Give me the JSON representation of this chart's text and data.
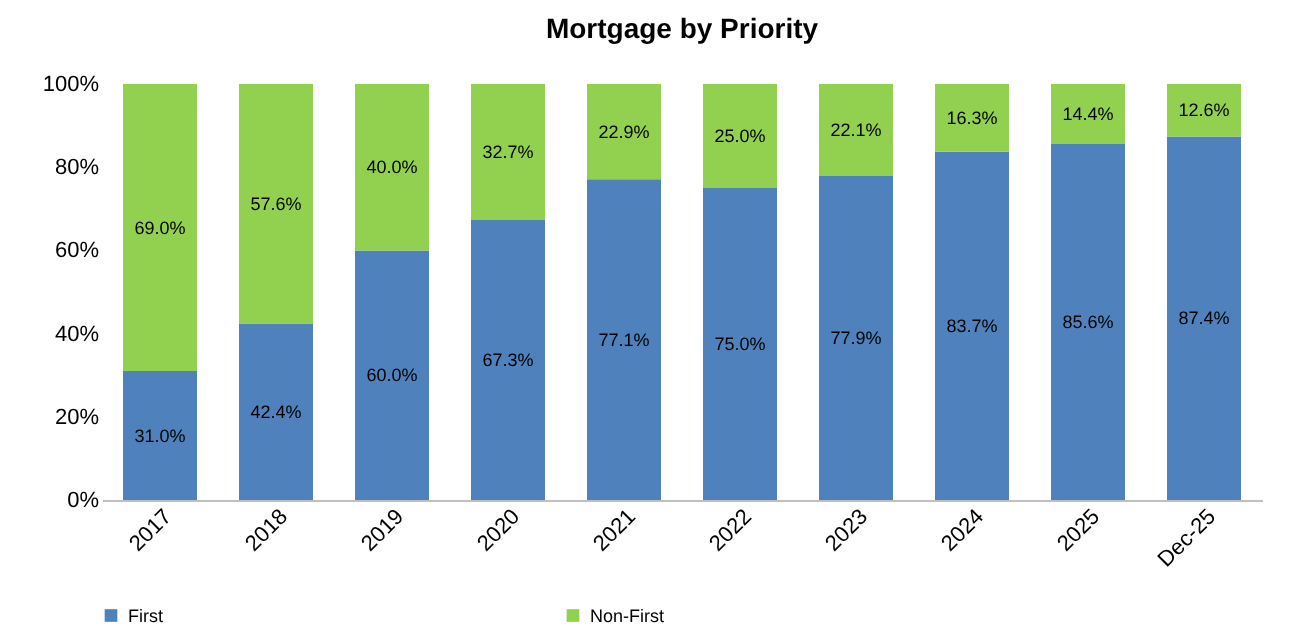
{
  "chart_data": {
    "type": "bar",
    "title": "Mortgage by Priority",
    "stacked": true,
    "categories": [
      "2017",
      "2018",
      "2019",
      "2020",
      "2021",
      "2022",
      "2023",
      "2024",
      "2025",
      "Dec-25"
    ],
    "series": [
      {
        "name": "First",
        "color": "#4f81bd",
        "values": [
          31.0,
          42.4,
          60.0,
          67.3,
          77.1,
          75.0,
          77.9,
          83.7,
          85.6,
          87.4
        ],
        "value_labels": [
          "31.0%",
          "42.4%",
          "60.0%",
          "67.3%",
          "77.1%",
          "75.0%",
          "77.9%",
          "83.7%",
          "85.6%",
          "87.4%"
        ]
      },
      {
        "name": "Non-First",
        "color": "#92d050",
        "values": [
          69.0,
          57.6,
          40.0,
          32.7,
          22.9,
          25.0,
          22.1,
          16.3,
          14.4,
          12.6
        ],
        "value_labels": [
          "69.0%",
          "57.6%",
          "40.0%",
          "32.7%",
          "22.9%",
          "25.0%",
          "22.1%",
          "16.3%",
          "14.4%",
          "12.6%"
        ]
      }
    ],
    "ylim": [
      0,
      100
    ],
    "yticks": [
      {
        "value": 0,
        "label": "0%"
      },
      {
        "value": 20,
        "label": "20%"
      },
      {
        "value": 40,
        "label": "40%"
      },
      {
        "value": 60,
        "label": "60%"
      },
      {
        "value": 80,
        "label": "80%"
      },
      {
        "value": 100,
        "label": "100%"
      }
    ],
    "grid": false,
    "legend": "bottom"
  }
}
